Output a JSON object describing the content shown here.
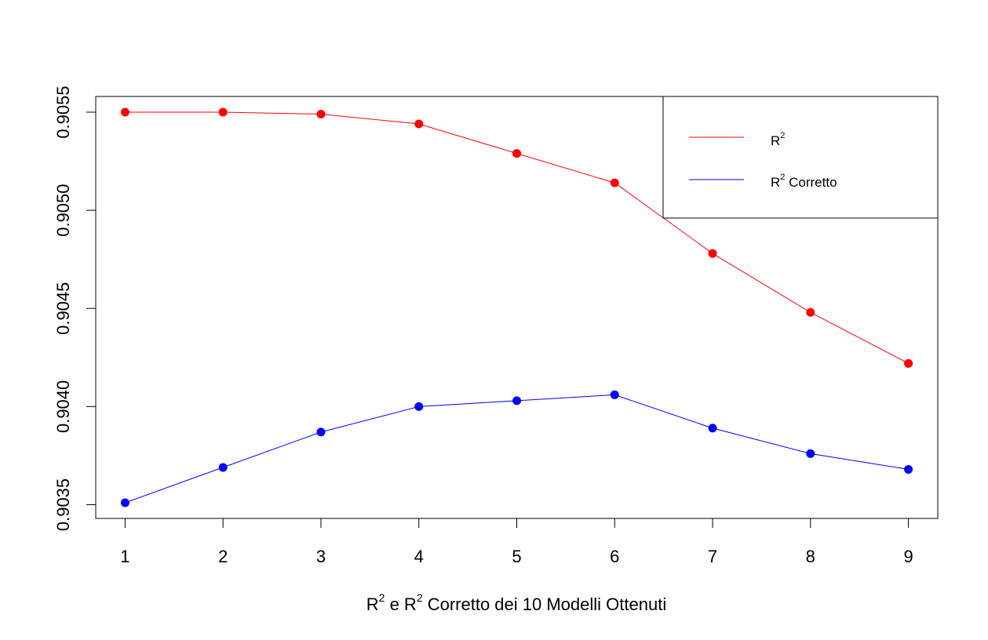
{
  "chart_data": {
    "type": "line",
    "x": [
      1,
      2,
      3,
      4,
      5,
      6,
      7,
      8,
      9
    ],
    "xlim": [
      0.7,
      9.3
    ],
    "ylim": [
      0.90343,
      0.90558
    ],
    "x_ticks": [
      1,
      2,
      3,
      4,
      5,
      6,
      7,
      8,
      9
    ],
    "y_ticks": [
      0.9035,
      0.904,
      0.9045,
      0.905,
      0.9055
    ],
    "y_tick_labels": [
      "0.9035",
      "0.9040",
      "0.9045",
      "0.9050",
      "0.9055"
    ],
    "xlabel": {
      "parts": [
        "R",
        "2",
        " e R",
        "2",
        " Corretto dei 10 Modelli Ottenuti"
      ]
    },
    "ylabel": "",
    "grid": false,
    "legend_position": "top-right",
    "series": [
      {
        "name": "R2",
        "legend_parts": [
          "R",
          "2"
        ],
        "color": "#ff0000",
        "values": [
          0.9055,
          0.9055,
          0.90549,
          0.90544,
          0.90529,
          0.90514,
          0.90478,
          0.90448,
          0.90422
        ]
      },
      {
        "name": "R2 Corretto",
        "legend_parts": [
          "R",
          "2",
          " Corretto"
        ],
        "color": "#0000ff",
        "values": [
          0.90351,
          0.90369,
          0.90387,
          0.904,
          0.90403,
          0.90406,
          0.90389,
          0.90376,
          0.90368
        ]
      }
    ]
  }
}
